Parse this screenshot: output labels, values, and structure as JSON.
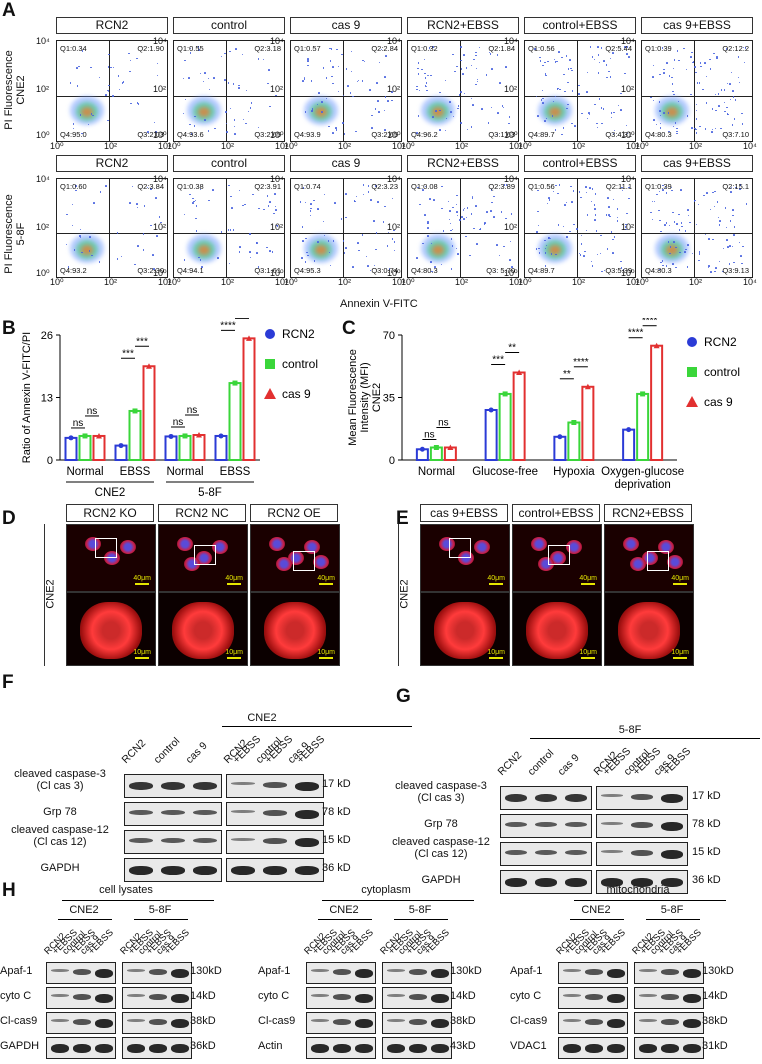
{
  "panels": {
    "A": "A",
    "B": "B",
    "C": "C",
    "D": "D",
    "E": "E",
    "F": "F",
    "G": "G",
    "H": "H"
  },
  "panelA": {
    "groups": [
      "RCN2",
      "control",
      "cas 9",
      "RCN2+EBSS",
      "control+EBSS",
      "cas 9+EBSS"
    ],
    "row1_label": "PI Fluorescence\nCNE2",
    "row2_label": "PI Fluorescence\n5-8F",
    "xlabel": "Annexin V-FITC",
    "yticks": [
      "10⁴",
      "10²",
      "10⁰"
    ],
    "xticks": [
      "10⁰",
      "10²",
      "10⁴"
    ],
    "row1": [
      {
        "q1": "Q1:0.34",
        "q2": "Q2:1.90",
        "q3": "Q3:2.03",
        "q4": "Q4:95.0"
      },
      {
        "q1": "Q1:0.55",
        "q2": "Q2:3.18",
        "q3": "Q3:2.65",
        "q4": "Q4:93.6"
      },
      {
        "q1": "Q1:0.57",
        "q2": "Q2:2.84",
        "q3": "Q3:2.65",
        "q4": "Q4:93.9"
      },
      {
        "q1": "Q1:0.32",
        "q2": "Q2:1.84",
        "q3": "Q3:1.63",
        "q4": "Q4:96.2"
      },
      {
        "q1": "Q1:0.56",
        "q2": "Q2:5.44",
        "q3": "Q3:4.31",
        "q4": "Q4:89.7"
      },
      {
        "q1": "Q1:0.39",
        "q2": "Q2:12.2",
        "q3": "Q3:7.10",
        "q4": "Q4:80.3"
      }
    ],
    "row2": [
      {
        "q1": "Q1:0.60",
        "q2": "Q2:3.84",
        "q3": "Q3:2.30",
        "q4": "Q4:93.2"
      },
      {
        "q1": "Q1:0.38",
        "q2": "Q2:3.91",
        "q3": "Q3:1.61",
        "q4": "Q4:94.1"
      },
      {
        "q1": "Q1:0.74",
        "q2": "Q2:3.23",
        "q3": "Q3:0.74",
        "q4": "Q4:95.3"
      },
      {
        "q1": "Q1:0.08",
        "q2": "Q2:3.89",
        "q3": "Q3: 5.70",
        "q4": "Q4:80.3"
      },
      {
        "q1": "Q1:0.56",
        "q2": "Q2:11.1",
        "q3": "Q3:5.39",
        "q4": "Q4:89.7"
      },
      {
        "q1": "Q1:0.39",
        "q2": "Q2:15.1",
        "q3": "Q3:9.13",
        "q4": "Q4:80.3"
      }
    ]
  },
  "chart_data": [
    {
      "type": "bar",
      "panel": "B",
      "ylabel": "Ratio of Annexin V-FITC/PI",
      "ylim": [
        0,
        26
      ],
      "yticks": [
        "0",
        "13",
        "26"
      ],
      "categories": [
        "Normal",
        "EBSS",
        "Normal",
        "EBSS"
      ],
      "groups": [
        "CNE2",
        "5-8F"
      ],
      "series": [
        {
          "name": "RCN2",
          "color": "#2b3bd6",
          "values": [
            4.6,
            3.0,
            4.9,
            5.0
          ]
        },
        {
          "name": "control",
          "color": "#3ad63a",
          "values": [
            5.0,
            10.2,
            5.0,
            16.0
          ]
        },
        {
          "name": "cas 9",
          "color": "#e23030",
          "values": [
            5.0,
            19.5,
            5.2,
            25.3
          ]
        }
      ],
      "sig": [
        {
          "text": "ns"
        },
        {
          "text": "ns"
        },
        {
          "text": "***"
        },
        {
          "text": "***"
        },
        {
          "text": "ns"
        },
        {
          "text": "ns"
        },
        {
          "text": "****"
        },
        {
          "text": "***"
        }
      ],
      "legend": [
        "RCN2",
        "control",
        "cas 9"
      ]
    },
    {
      "type": "bar",
      "panel": "C",
      "ylabel": "Mean Fluorescence\nIntensity (MFI)\nCNE2",
      "ylim": [
        0,
        70
      ],
      "yticks": [
        "0",
        "35",
        "70"
      ],
      "categories": [
        "Normal",
        "Glucose-free",
        "Hypoxia",
        "Oxygen-glucose\ndeprivation"
      ],
      "series": [
        {
          "name": "RCN2",
          "color": "#2b3bd6",
          "values": [
            6,
            28,
            13,
            17
          ]
        },
        {
          "name": "control",
          "color": "#3ad63a",
          "values": [
            7,
            37,
            21,
            37
          ]
        },
        {
          "name": "cas 9",
          "color": "#e23030",
          "values": [
            7,
            49,
            41,
            64
          ]
        }
      ],
      "sig": [
        {
          "text": "ns"
        },
        {
          "text": "ns"
        },
        {
          "text": "***"
        },
        {
          "text": "**"
        },
        {
          "text": "**"
        },
        {
          "text": "****"
        },
        {
          "text": "****"
        },
        {
          "text": "****"
        }
      ],
      "legend": [
        "RCN2",
        "control",
        "cas 9"
      ]
    }
  ],
  "panelD": {
    "headers": [
      "RCN2 KO",
      "RCN2 NC",
      "RCN2 OE"
    ],
    "side": "CNE2",
    "scale_top": "40μm",
    "scale_bottom": "10μm"
  },
  "panelE": {
    "headers": [
      "cas 9+EBSS",
      "control+EBSS",
      "RCN2+EBSS"
    ],
    "side": "CNE2",
    "scale_top": "40μm",
    "scale_bottom": "10μm"
  },
  "panelF": {
    "cell": "CNE2",
    "lanes": [
      "RCN2",
      "control",
      "cas 9",
      "RCN2\n+EBSS",
      "control\n+EBSS",
      "cas 9\n+EBSS"
    ],
    "rows": [
      {
        "label": "cleaved caspase-3\n(Cl cas 3)",
        "kd": "17 kD"
      },
      {
        "label": "Grp 78",
        "kd": "78 kD"
      },
      {
        "label": "cleaved caspase-12\n(Cl cas 12)",
        "kd": "15 kD"
      },
      {
        "label": "GAPDH",
        "kd": "36 kD"
      }
    ]
  },
  "panelG": {
    "cell": "5-8F",
    "lanes": [
      "RCN2",
      "control",
      "cas 9",
      "RCN2\n+EBSS",
      "control\n+EBSS",
      "cas 9\n+EBSS"
    ],
    "rows": [
      {
        "label": "cleaved caspase-3\n(Cl cas 3)",
        "kd": "17 kD"
      },
      {
        "label": "Grp 78",
        "kd": "78 kD"
      },
      {
        "label": "cleaved caspase-12\n(Cl cas 12)",
        "kd": "15 kD"
      },
      {
        "label": "GAPDH",
        "kd": "36 kD"
      }
    ]
  },
  "panelH": {
    "sections": [
      {
        "title": "cell lysates",
        "rows": [
          {
            "label": "Apaf-1",
            "kd": "130kD"
          },
          {
            "label": "cyto C",
            "kd": "14kD"
          },
          {
            "label": "Cl-cas9",
            "kd": "38kD"
          },
          {
            "label": "GAPDH",
            "kd": "36kD"
          }
        ]
      },
      {
        "title": "cytoplasm",
        "rows": [
          {
            "label": "Apaf-1",
            "kd": "130kD"
          },
          {
            "label": "cyto C",
            "kd": "14kD"
          },
          {
            "label": "Cl-cas9",
            "kd": "38kD"
          },
          {
            "label": "Actin",
            "kd": "43kD"
          }
        ]
      },
      {
        "title": "mitochondria",
        "rows": [
          {
            "label": "Apaf-1",
            "kd": "130kD"
          },
          {
            "label": "cyto C",
            "kd": "14kD"
          },
          {
            "label": "Cl-cas9",
            "kd": "38kD"
          },
          {
            "label": "VDAC1",
            "kd": "31kD"
          }
        ]
      }
    ],
    "cells": [
      "CNE2",
      "5-8F"
    ],
    "lanes": [
      "RCN2\n+EBSS",
      "control\n+EBSS",
      "cas 9\n+EBSS"
    ]
  }
}
